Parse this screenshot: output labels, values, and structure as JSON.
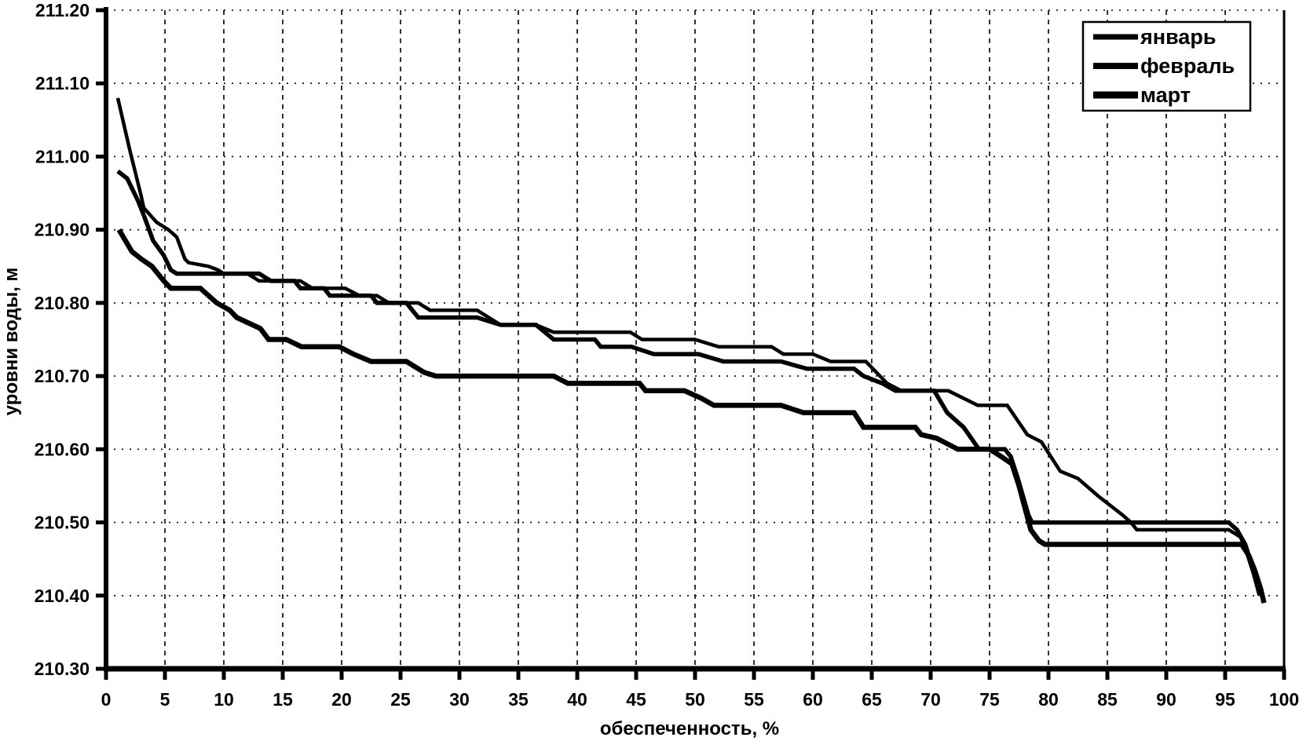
{
  "page": {
    "background": "#ffffff",
    "ink_color": "#000000"
  },
  "chart_data": {
    "type": "line",
    "title": "",
    "xlabel": "обеспеченность, %",
    "ylabel": "уровни воды, м",
    "xlim": [
      0,
      100
    ],
    "ylim": [
      210.3,
      211.2
    ],
    "x_ticks": [
      0,
      5,
      10,
      15,
      20,
      25,
      30,
      35,
      40,
      45,
      50,
      55,
      60,
      65,
      70,
      75,
      80,
      85,
      90,
      95,
      100
    ],
    "y_ticks": [
      {
        "value": 211.2,
        "label": "211.20"
      },
      {
        "value": 211.1,
        "label": "211.10"
      },
      {
        "value": 211.0,
        "label": "211.00"
      },
      {
        "value": 210.9,
        "label": "210.90"
      },
      {
        "value": 210.8,
        "label": "210.80"
      },
      {
        "value": 210.7,
        "label": "210.70"
      },
      {
        "value": 210.6,
        "label": "210.60"
      },
      {
        "value": 210.5,
        "label": "210.50"
      },
      {
        "value": 210.4,
        "label": "210.40"
      },
      {
        "value": 210.3,
        "label": "210.30"
      }
    ],
    "grid": "dashed, vertical every 5%, horizontal every 0.10 m",
    "legend_position": "top-right",
    "line_color": "#000000",
    "series": [
      {
        "key": "january",
        "name": "январь",
        "width": 4.5,
        "points": [
          [
            1,
            211.08
          ],
          [
            2,
            211.01
          ],
          [
            3,
            210.945
          ],
          [
            3.2,
            210.93
          ],
          [
            4.3,
            210.91
          ],
          [
            5.3,
            210.9
          ],
          [
            6,
            210.89
          ],
          [
            6.7,
            210.86
          ],
          [
            7,
            210.855
          ],
          [
            8.7,
            210.85
          ],
          [
            9.5,
            210.845
          ],
          [
            10,
            210.84
          ],
          [
            12,
            210.84
          ],
          [
            13,
            210.83
          ],
          [
            16.5,
            210.83
          ],
          [
            17.5,
            210.82
          ],
          [
            20.3,
            210.82
          ],
          [
            21.5,
            210.81
          ],
          [
            23,
            210.81
          ],
          [
            24,
            210.8
          ],
          [
            26.5,
            210.8
          ],
          [
            27.5,
            210.79
          ],
          [
            31.5,
            210.79
          ],
          [
            33.5,
            210.77
          ],
          [
            36.5,
            210.77
          ],
          [
            38,
            210.76
          ],
          [
            44.5,
            210.76
          ],
          [
            45.5,
            210.75
          ],
          [
            50,
            210.75
          ],
          [
            52,
            210.74
          ],
          [
            56.5,
            210.74
          ],
          [
            57.5,
            210.73
          ],
          [
            60,
            210.73
          ],
          [
            61.5,
            210.72
          ],
          [
            64.5,
            210.72
          ],
          [
            66.3,
            210.69
          ],
          [
            67.5,
            210.68
          ],
          [
            71.5,
            210.68
          ],
          [
            74,
            210.66
          ],
          [
            76.5,
            210.66
          ],
          [
            78.2,
            210.62
          ],
          [
            79.4,
            210.61
          ],
          [
            81,
            210.57
          ],
          [
            82.5,
            210.56
          ],
          [
            84.3,
            210.535
          ],
          [
            86.3,
            210.51
          ],
          [
            87,
            210.5
          ],
          [
            87.5,
            210.49
          ],
          [
            95.3,
            210.49
          ],
          [
            96.3,
            210.48
          ],
          [
            96.8,
            210.46
          ],
          [
            97.4,
            210.43
          ],
          [
            97.9,
            210.4
          ]
        ]
      },
      {
        "key": "february",
        "name": "февраль",
        "width": 5.5,
        "points": [
          [
            1,
            210.98
          ],
          [
            1.8,
            210.97
          ],
          [
            2.7,
            210.94
          ],
          [
            3.2,
            210.92
          ],
          [
            4,
            210.885
          ],
          [
            4.9,
            210.865
          ],
          [
            5.5,
            210.845
          ],
          [
            6,
            210.84
          ],
          [
            13,
            210.84
          ],
          [
            13.5,
            210.835
          ],
          [
            14,
            210.83
          ],
          [
            16,
            210.83
          ],
          [
            16.5,
            210.82
          ],
          [
            18.5,
            210.82
          ],
          [
            19,
            210.81
          ],
          [
            22.5,
            210.81
          ],
          [
            23,
            210.8
          ],
          [
            25.5,
            210.8
          ],
          [
            26.5,
            210.78
          ],
          [
            31.5,
            210.78
          ],
          [
            33.5,
            210.77
          ],
          [
            36.5,
            210.77
          ],
          [
            38,
            210.75
          ],
          [
            41.5,
            210.75
          ],
          [
            42,
            210.74
          ],
          [
            44.6,
            210.74
          ],
          [
            46.5,
            210.73
          ],
          [
            50.3,
            210.73
          ],
          [
            52.4,
            210.72
          ],
          [
            57.3,
            210.72
          ],
          [
            59.5,
            210.71
          ],
          [
            63.5,
            210.71
          ],
          [
            64.3,
            210.7
          ],
          [
            65.9,
            210.69
          ],
          [
            67,
            210.68
          ],
          [
            70.3,
            210.68
          ],
          [
            71.4,
            210.65
          ],
          [
            72.8,
            210.63
          ],
          [
            74.1,
            210.6
          ],
          [
            76.3,
            210.6
          ],
          [
            76.8,
            210.59
          ],
          [
            77.4,
            210.56
          ],
          [
            78.3,
            210.51
          ],
          [
            78.6,
            210.5
          ],
          [
            95.3,
            210.5
          ],
          [
            96,
            210.49
          ],
          [
            96.7,
            210.47
          ],
          [
            97.3,
            210.44
          ],
          [
            97.8,
            210.42
          ]
        ]
      },
      {
        "key": "march",
        "name": "март",
        "width": 6.5,
        "points": [
          [
            1.1,
            210.9
          ],
          [
            2.2,
            210.87
          ],
          [
            3,
            210.86
          ],
          [
            3.9,
            210.85
          ],
          [
            4.9,
            210.83
          ],
          [
            5.5,
            210.82
          ],
          [
            8,
            210.82
          ],
          [
            9.4,
            210.8
          ],
          [
            10.5,
            210.79
          ],
          [
            11.1,
            210.78
          ],
          [
            13.1,
            210.765
          ],
          [
            13.8,
            210.75
          ],
          [
            15.3,
            210.75
          ],
          [
            16.6,
            210.74
          ],
          [
            19.8,
            210.74
          ],
          [
            21,
            210.73
          ],
          [
            22.5,
            210.72
          ],
          [
            25.5,
            210.72
          ],
          [
            27,
            210.705
          ],
          [
            28,
            210.7
          ],
          [
            38,
            210.7
          ],
          [
            39.2,
            210.69
          ],
          [
            45.3,
            210.69
          ],
          [
            45.8,
            210.68
          ],
          [
            49.1,
            210.68
          ],
          [
            50.5,
            210.67
          ],
          [
            51.6,
            210.66
          ],
          [
            57.3,
            210.66
          ],
          [
            59.2,
            210.65
          ],
          [
            63.5,
            210.65
          ],
          [
            64.3,
            210.63
          ],
          [
            68.7,
            210.63
          ],
          [
            69.2,
            210.62
          ],
          [
            70.5,
            210.615
          ],
          [
            72.3,
            210.6
          ],
          [
            75,
            210.6
          ],
          [
            76,
            210.59
          ],
          [
            76.9,
            210.58
          ],
          [
            77.5,
            210.55
          ],
          [
            78,
            210.52
          ],
          [
            78.5,
            210.49
          ],
          [
            79.2,
            210.475
          ],
          [
            79.7,
            210.47
          ],
          [
            96.4,
            210.47
          ],
          [
            97,
            210.455
          ],
          [
            97.5,
            210.435
          ],
          [
            98,
            210.41
          ],
          [
            98.3,
            210.39
          ]
        ]
      }
    ]
  }
}
